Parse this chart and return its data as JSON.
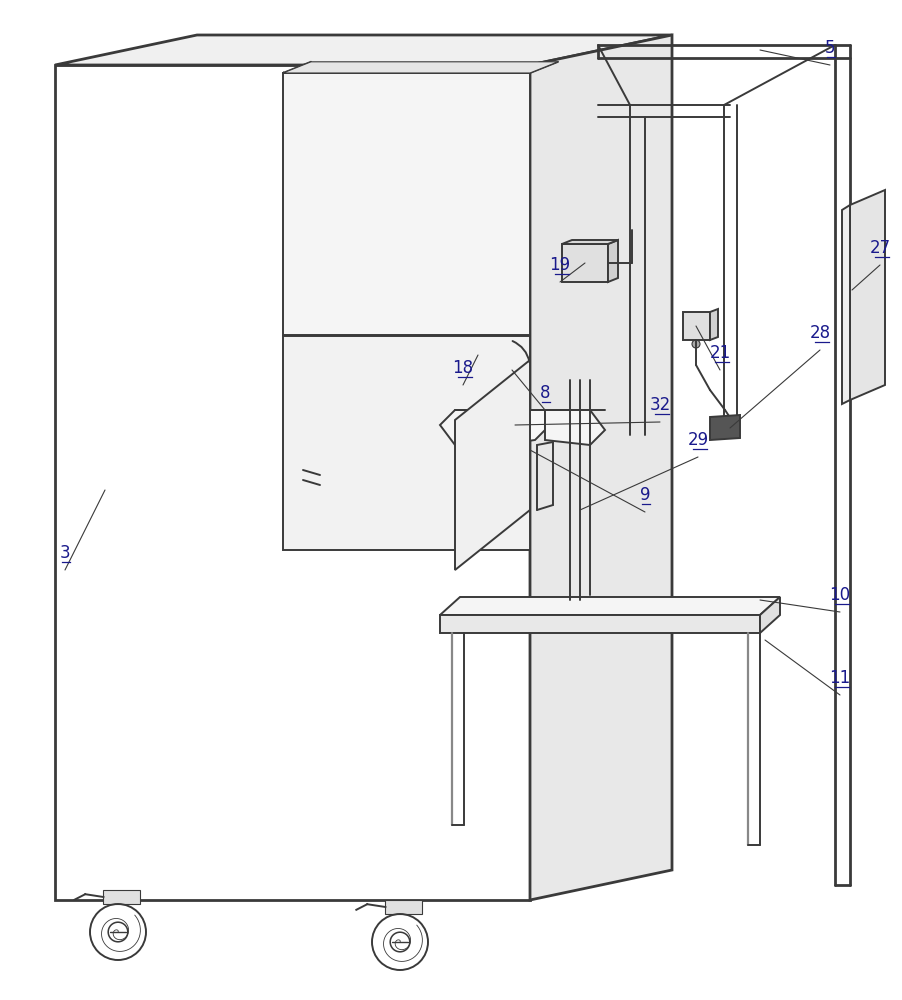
{
  "background_color": "#ffffff",
  "line_color": "#3a3a3a",
  "label_color": "#1a1a8c",
  "lw": 1.4,
  "tlw": 2.0,
  "fig_width": 9.03,
  "fig_height": 10.0
}
